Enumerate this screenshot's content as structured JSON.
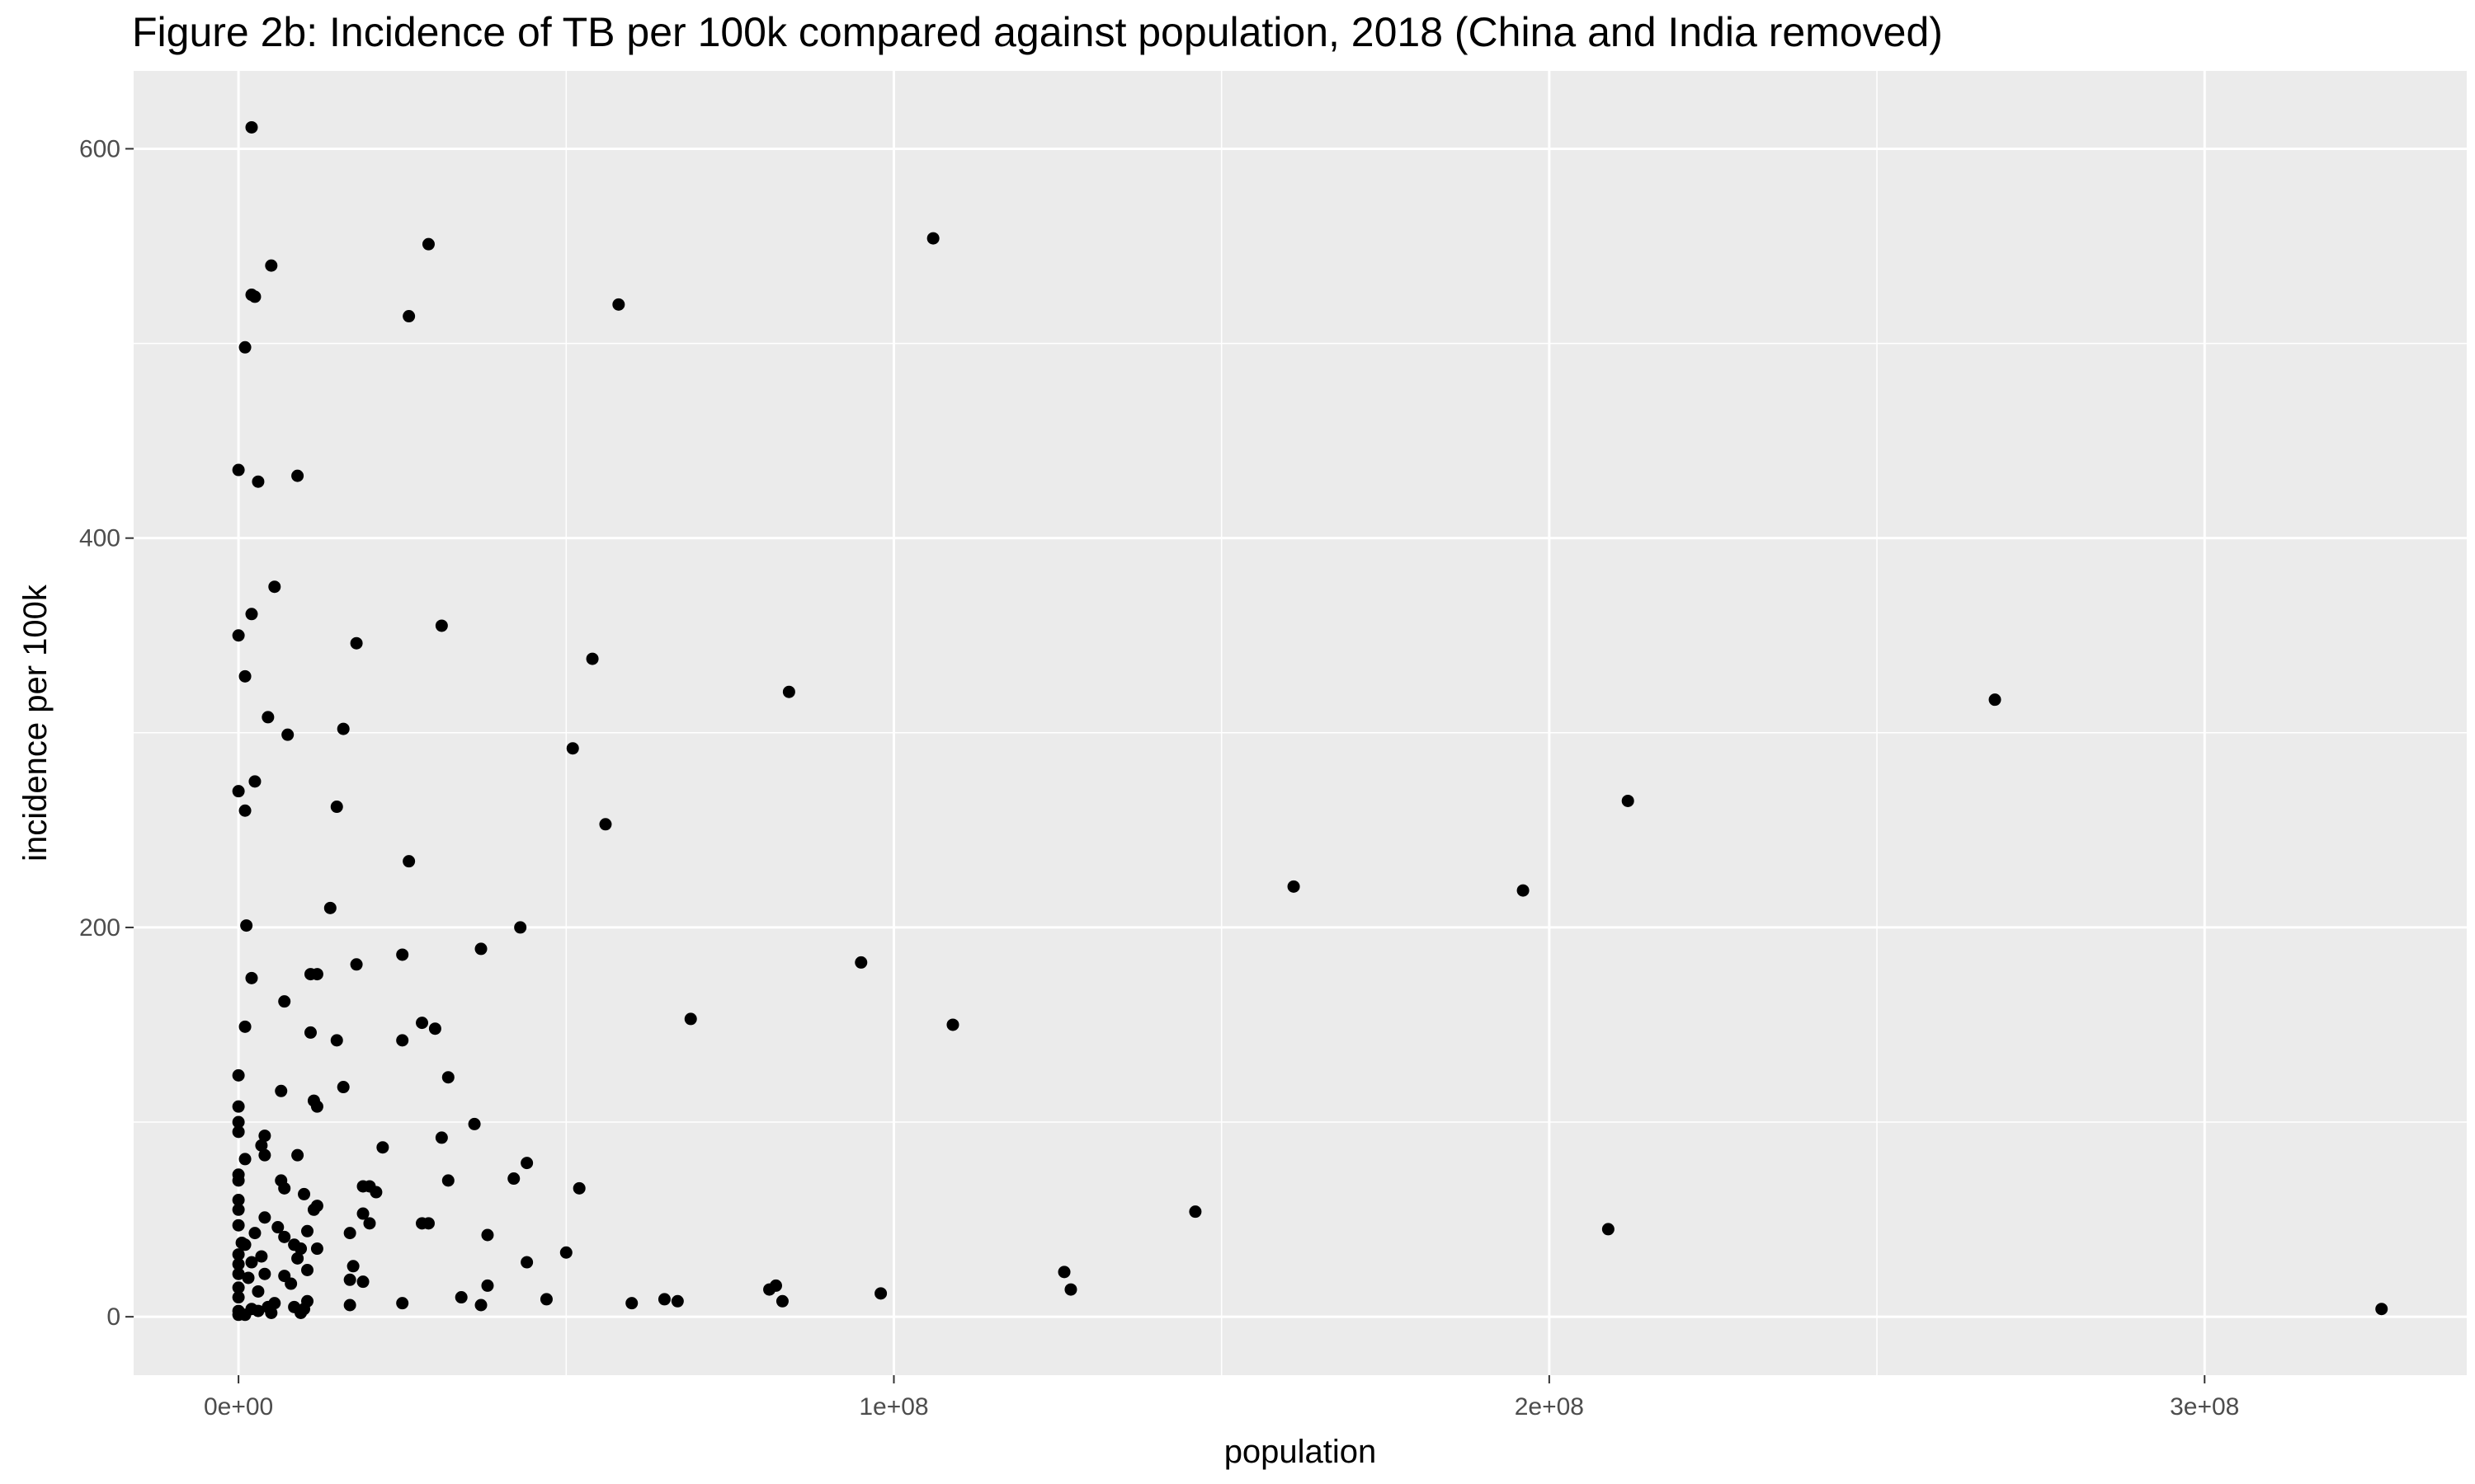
{
  "chart_data": {
    "type": "scatter",
    "title": "Figure 2b: Incidence of TB per 100k compared against population, 2018 (China and India removed)",
    "xlabel": "population",
    "ylabel": "incidence per 100k",
    "xlim": [
      -16000000,
      340000000
    ],
    "ylim": [
      -30,
      640
    ],
    "x_ticks": [
      0,
      100000000,
      200000000,
      300000000
    ],
    "x_tick_labels": [
      "0e+00",
      "1e+08",
      "2e+08",
      "3e+08"
    ],
    "y_ticks": [
      0,
      200,
      400,
      600
    ],
    "y_tick_labels": [
      "0",
      "200",
      "400",
      "600"
    ],
    "grid": true,
    "colors": {
      "panel": "#ebebeb",
      "grid": "#ffffff",
      "point": "#000000"
    },
    "points": [
      [
        2000000,
        611
      ],
      [
        29000000,
        551
      ],
      [
        106000000,
        554
      ],
      [
        5000000,
        540
      ],
      [
        2000000,
        525
      ],
      [
        2500000,
        524
      ],
      [
        58000000,
        520
      ],
      [
        26000000,
        514
      ],
      [
        1000000,
        498
      ],
      [
        0,
        435
      ],
      [
        9000000,
        432
      ],
      [
        3000000,
        429
      ],
      [
        5500000,
        375
      ],
      [
        2000000,
        361
      ],
      [
        18000000,
        346
      ],
      [
        31000000,
        355
      ],
      [
        0,
        350
      ],
      [
        54000000,
        338
      ],
      [
        1000000,
        329
      ],
      [
        84000000,
        321
      ],
      [
        268000000,
        317
      ],
      [
        4500000,
        308
      ],
      [
        16000000,
        302
      ],
      [
        7500000,
        299
      ],
      [
        51000000,
        292
      ],
      [
        2500000,
        275
      ],
      [
        0,
        270
      ],
      [
        15000000,
        262
      ],
      [
        1000000,
        260
      ],
      [
        212000000,
        265
      ],
      [
        56000000,
        253
      ],
      [
        26000000,
        234
      ],
      [
        161000000,
        221
      ],
      [
        196000000,
        219
      ],
      [
        14000000,
        210
      ],
      [
        1200000,
        201
      ],
      [
        43000000,
        200
      ],
      [
        37000000,
        189
      ],
      [
        25000000,
        186
      ],
      [
        95000000,
        182
      ],
      [
        18000000,
        181
      ],
      [
        11000000,
        176
      ],
      [
        12000000,
        176
      ],
      [
        2000000,
        174
      ],
      [
        7000000,
        162
      ],
      [
        69000000,
        153
      ],
      [
        28000000,
        151
      ],
      [
        30000000,
        148
      ],
      [
        109000000,
        150
      ],
      [
        1000000,
        149
      ],
      [
        11000000,
        146
      ],
      [
        15000000,
        142
      ],
      [
        25000000,
        142
      ],
      [
        32000000,
        123
      ],
      [
        0,
        124
      ],
      [
        16000000,
        118
      ],
      [
        6500000,
        116
      ],
      [
        11500000,
        111
      ],
      [
        12000000,
        108
      ],
      [
        0,
        108
      ],
      [
        0,
        100
      ],
      [
        36000000,
        99
      ],
      [
        0,
        95
      ],
      [
        31000000,
        92
      ],
      [
        4000000,
        93
      ],
      [
        3500000,
        88
      ],
      [
        22000000,
        87
      ],
      [
        4000000,
        83
      ],
      [
        9000000,
        83
      ],
      [
        1000000,
        81
      ],
      [
        44000000,
        79
      ],
      [
        0,
        73
      ],
      [
        0,
        70
      ],
      [
        6500000,
        70
      ],
      [
        42000000,
        71
      ],
      [
        32000000,
        70
      ],
      [
        19000000,
        67
      ],
      [
        20000000,
        67
      ],
      [
        7000000,
        66
      ],
      [
        52000000,
        66
      ],
      [
        21000000,
        64
      ],
      [
        10000000,
        63
      ],
      [
        0,
        60
      ],
      [
        12000000,
        57
      ],
      [
        11500000,
        55
      ],
      [
        0,
        55
      ],
      [
        146000000,
        54
      ],
      [
        19000000,
        53
      ],
      [
        20000000,
        48
      ],
      [
        28000000,
        48
      ],
      [
        29000000,
        48
      ],
      [
        4000000,
        51
      ],
      [
        6000000,
        46
      ],
      [
        0,
        47
      ],
      [
        10500000,
        44
      ],
      [
        17000000,
        43
      ],
      [
        209000000,
        45
      ],
      [
        2500000,
        43
      ],
      [
        38000000,
        42
      ],
      [
        7000000,
        41
      ],
      [
        1000000,
        37
      ],
      [
        8500000,
        37
      ],
      [
        9500000,
        35
      ],
      [
        12000000,
        35
      ],
      [
        50000000,
        33
      ],
      [
        0,
        32
      ],
      [
        3500000,
        31
      ],
      [
        9000000,
        30
      ],
      [
        44000000,
        28
      ],
      [
        2000000,
        28
      ],
      [
        17500000,
        26
      ],
      [
        10500000,
        24
      ],
      [
        4000000,
        22
      ],
      [
        0,
        22
      ],
      [
        7000000,
        21
      ],
      [
        126000000,
        23
      ],
      [
        1500000,
        20
      ],
      [
        17000000,
        19
      ],
      [
        19000000,
        18
      ],
      [
        8000000,
        17
      ],
      [
        82000000,
        16
      ],
      [
        0,
        15
      ],
      [
        38000000,
        16
      ],
      [
        81000000,
        14
      ],
      [
        127000000,
        14
      ],
      [
        3000000,
        13
      ],
      [
        98000000,
        12
      ],
      [
        34000000,
        10
      ],
      [
        47000000,
        9
      ],
      [
        65000000,
        9
      ],
      [
        67000000,
        8
      ],
      [
        83000000,
        8
      ],
      [
        60000000,
        7
      ],
      [
        25000000,
        7
      ],
      [
        37000000,
        6
      ],
      [
        10500000,
        8
      ],
      [
        17000000,
        6
      ],
      [
        5500000,
        7
      ],
      [
        8500000,
        5
      ],
      [
        4500000,
        5
      ],
      [
        2000000,
        4
      ],
      [
        10000000,
        4
      ],
      [
        0,
        3
      ],
      [
        3000000,
        3
      ],
      [
        9500000,
        2
      ],
      [
        5000000,
        2
      ],
      [
        1000000,
        1
      ],
      [
        0,
        1
      ],
      [
        327000000,
        4
      ],
      [
        0,
        10
      ],
      [
        0,
        27
      ],
      [
        500000,
        38
      ]
    ]
  }
}
